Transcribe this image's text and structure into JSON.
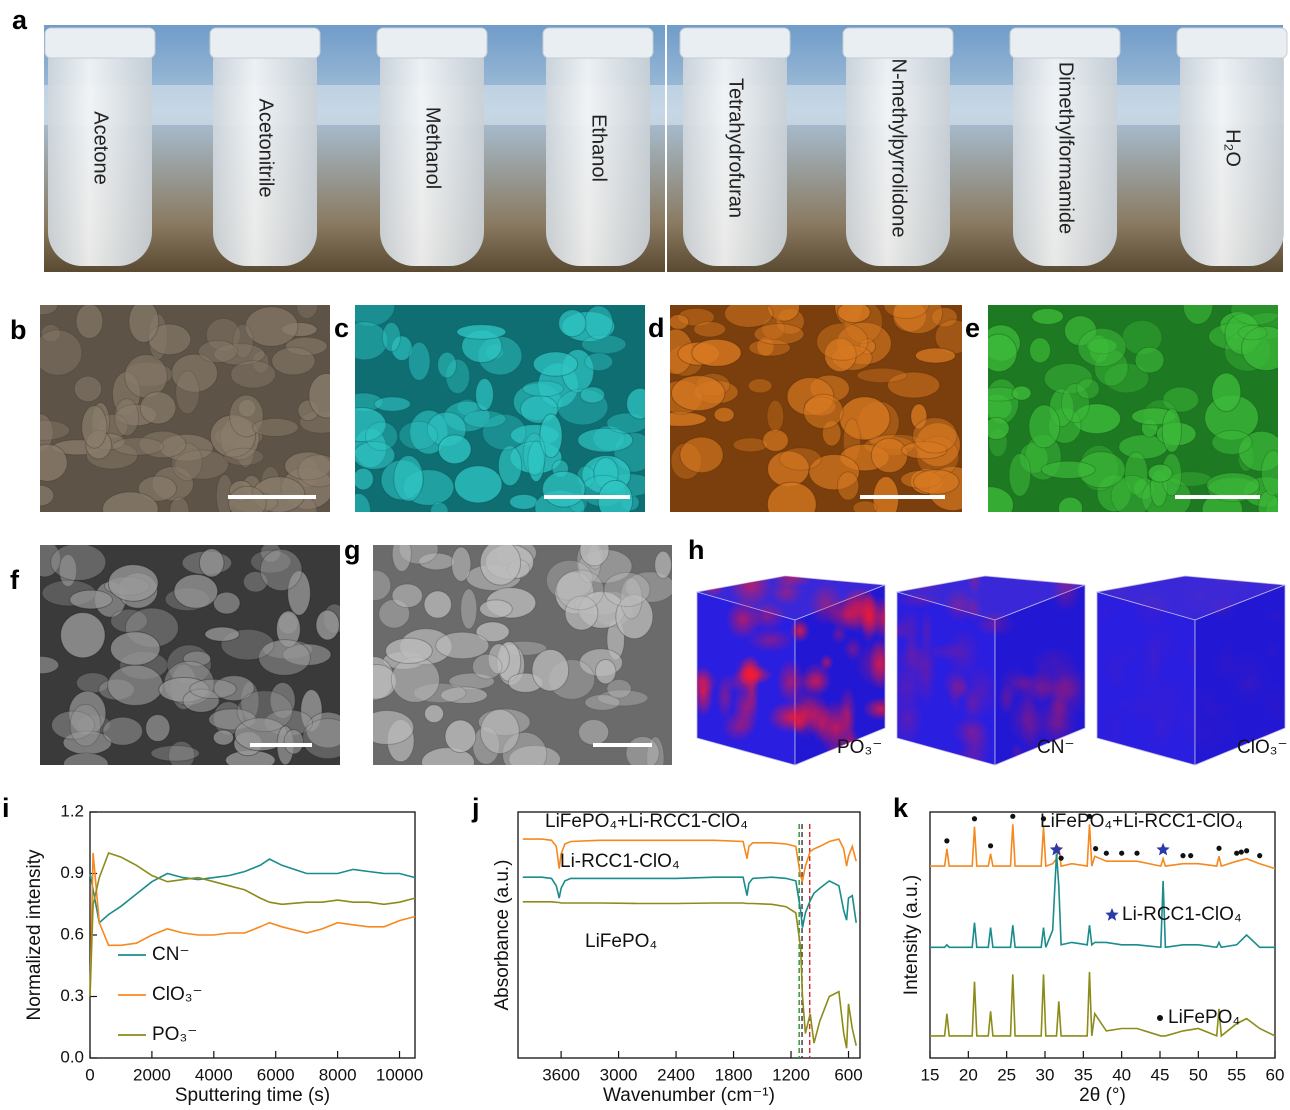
{
  "panel_labels": [
    "a",
    "b",
    "c",
    "d",
    "e",
    "f",
    "g",
    "h",
    "i",
    "j",
    "k"
  ],
  "solvents": [
    "Acetone",
    "Acetonitrile",
    "Methanol",
    "Ethanol",
    "Tetrahydrofuran",
    "N-methylpyrrolidone",
    "Dimethylformamide",
    "H₂O"
  ],
  "cube_labels": [
    "PO₃⁻",
    "CN⁻",
    "ClO₃⁻"
  ],
  "chart_data": [
    {
      "type": "line",
      "xlabel": "Sputtering time (s)",
      "ylabel": "Normalized intensity",
      "x": [
        0,
        100,
        300,
        600,
        1000,
        1500,
        2000,
        2500,
        3000,
        3500,
        4000,
        4500,
        5000,
        5500,
        5800,
        6200,
        7000,
        7500,
        8000,
        8500,
        9000,
        9500,
        10000,
        10500
      ],
      "xlim": [
        0,
        10500
      ],
      "xticks": [
        0,
        2000,
        4000,
        6000,
        8000,
        10000
      ],
      "ylim": [
        0,
        1.2
      ],
      "yticks": [
        {
          "value": 0,
          "label": "0.0"
        },
        0.3,
        0.6,
        0.9,
        1.2
      ],
      "legend": "lower left",
      "series": [
        {
          "name": "CN⁻",
          "color": "#1a8c8c",
          "values": [
            0.9,
            0.82,
            0.66,
            0.7,
            0.74,
            0.8,
            0.86,
            0.9,
            0.88,
            0.87,
            0.88,
            0.89,
            0.91,
            0.94,
            0.97,
            0.94,
            0.9,
            0.9,
            0.9,
            0.92,
            0.91,
            0.9,
            0.9,
            0.88
          ]
        },
        {
          "name": "ClO₃⁻",
          "color": "#f5891f",
          "values": [
            0.3,
            1.0,
            0.66,
            0.55,
            0.55,
            0.56,
            0.6,
            0.63,
            0.61,
            0.6,
            0.6,
            0.61,
            0.61,
            0.64,
            0.66,
            0.64,
            0.61,
            0.63,
            0.66,
            0.65,
            0.64,
            0.64,
            0.67,
            0.69
          ]
        },
        {
          "name": "PO₃⁻",
          "color": "#8c8c1a",
          "values": [
            0.3,
            0.75,
            0.88,
            1.0,
            0.98,
            0.94,
            0.89,
            0.86,
            0.87,
            0.88,
            0.86,
            0.84,
            0.82,
            0.78,
            0.76,
            0.75,
            0.76,
            0.76,
            0.77,
            0.76,
            0.76,
            0.75,
            0.76,
            0.78
          ]
        }
      ]
    },
    {
      "type": "line",
      "xlabel": "Wavenumber (cm⁻¹)",
      "ylabel": "Absorbance (a.u.)",
      "x": [
        4000,
        3800,
        3700,
        3650,
        3620,
        3600,
        3560,
        3500,
        3200,
        2800,
        2400,
        2000,
        1700,
        1660,
        1640,
        1600,
        1400,
        1250,
        1150,
        1100,
        1080,
        1050,
        1000,
        960,
        900,
        800,
        700,
        650,
        620,
        600,
        560,
        520
      ],
      "xlim": [
        4050,
        480
      ],
      "xticks": [
        3600,
        3000,
        2400,
        1800,
        1200,
        600
      ],
      "ylim": [
        0,
        10
      ],
      "reference_lines": [
        {
          "x": 1115,
          "color": "#2e8b2e"
        },
        {
          "x": 1085,
          "color": "#333333"
        },
        {
          "x": 1005,
          "color": "#d62728"
        }
      ],
      "series": [
        {
          "name": "LiFePO₄+Li-RCC1-ClO₄",
          "color": "#f5891f",
          "values": [
            8.9,
            8.9,
            8.85,
            8.6,
            7.7,
            8.3,
            8.7,
            8.8,
            8.85,
            8.85,
            8.85,
            8.85,
            8.8,
            8.1,
            8.6,
            8.75,
            8.75,
            8.7,
            8.6,
            7.4,
            7.2,
            7.8,
            8.4,
            8.5,
            8.6,
            8.8,
            8.9,
            8.5,
            7.8,
            8.2,
            8.6,
            8.0
          ]
        },
        {
          "name": "Li-RCC1-ClO₄",
          "color": "#1a8c8c",
          "values": [
            7.35,
            7.35,
            7.3,
            7.0,
            6.5,
            6.9,
            7.2,
            7.3,
            7.3,
            7.3,
            7.3,
            7.35,
            7.35,
            6.6,
            7.1,
            7.3,
            7.35,
            7.3,
            7.2,
            6.0,
            5.3,
            5.9,
            6.4,
            6.7,
            6.9,
            7.2,
            7.0,
            6.0,
            5.6,
            6.5,
            6.6,
            5.5
          ]
        },
        {
          "name": "LiFePO₄",
          "color": "#8c8c1a",
          "values": [
            6.35,
            6.35,
            6.35,
            6.33,
            6.32,
            6.3,
            6.3,
            6.3,
            6.3,
            6.28,
            6.28,
            6.3,
            6.3,
            6.28,
            6.28,
            6.28,
            6.25,
            6.15,
            5.9,
            4.5,
            2.5,
            1.0,
            1.8,
            0.6,
            1.5,
            2.5,
            2.7,
            1.0,
            0.4,
            2.2,
            1.2,
            0.5
          ]
        }
      ]
    },
    {
      "type": "line",
      "xlabel": "2θ (°)",
      "ylabel": "Intensity (a.u.)",
      "x": [
        15,
        16.9,
        17.2,
        17.5,
        20.5,
        20.8,
        21.1,
        22.6,
        22.9,
        23.2,
        25.5,
        25.8,
        26.1,
        29.5,
        29.8,
        30.1,
        31.0,
        31.5,
        31.8,
        32.1,
        33.5,
        35.5,
        35.8,
        36.1,
        36.5,
        38.0,
        40.0,
        42.0,
        45.1,
        45.4,
        45.7,
        48.0,
        50.0,
        52.4,
        52.7,
        53.0,
        55.0,
        56.3,
        58.0,
        60
      ],
      "xlim": [
        15,
        60
      ],
      "xticks": [
        15,
        20,
        25,
        30,
        35,
        40,
        45,
        50,
        55,
        60
      ],
      "ylim": [
        0,
        10
      ],
      "peak_markers": {
        "dot": [
          17.2,
          20.8,
          22.9,
          25.8,
          29.8,
          32.1,
          35.8,
          36.6,
          38,
          40,
          42,
          48,
          49,
          52.7,
          55,
          55.6,
          56.3,
          58
        ],
        "star": [
          31.5,
          45.4
        ]
      },
      "series": [
        {
          "name": "LiFePO₄+Li-RCC1-ClO₄",
          "color": "#f5891f",
          "values": [
            7.8,
            7.8,
            8.5,
            7.8,
            7.8,
            9.4,
            7.8,
            7.8,
            8.3,
            7.8,
            7.8,
            9.5,
            7.8,
            7.8,
            9.4,
            7.8,
            7.9,
            8.1,
            8.6,
            7.8,
            7.9,
            7.8,
            9.5,
            7.8,
            8.2,
            8.0,
            8.0,
            8.0,
            7.8,
            8.1,
            7.8,
            7.9,
            7.9,
            7.8,
            8.2,
            7.8,
            8.0,
            8.1,
            7.9,
            7.7
          ]
        },
        {
          "name": "Li-RCC1-ClO₄",
          "color": "#1a8c8c",
          "marker": "star",
          "values": [
            4.5,
            4.5,
            4.6,
            4.5,
            4.5,
            5.5,
            4.5,
            4.5,
            5.3,
            4.5,
            4.5,
            5.4,
            4.5,
            4.5,
            5.3,
            4.5,
            5.2,
            8.3,
            7.0,
            4.6,
            4.7,
            4.6,
            5.4,
            4.6,
            4.7,
            4.7,
            4.6,
            4.6,
            4.5,
            7.2,
            4.5,
            4.6,
            4.6,
            4.5,
            4.7,
            4.5,
            4.6,
            5.0,
            4.5,
            4.5
          ]
        },
        {
          "name": "LiFePO₄",
          "color": "#8c8c1a",
          "marker": "dot",
          "values": [
            0.9,
            0.9,
            1.8,
            0.9,
            0.9,
            3.1,
            0.9,
            0.9,
            1.9,
            0.9,
            0.9,
            3.4,
            0.9,
            0.9,
            3.4,
            0.9,
            0.9,
            0.9,
            2.3,
            0.9,
            0.9,
            0.9,
            3.5,
            0.9,
            1.8,
            1.1,
            1.2,
            1.2,
            0.9,
            0.9,
            0.9,
            1.1,
            1.2,
            0.9,
            2.0,
            0.9,
            1.4,
            1.6,
            1.2,
            0.9
          ]
        }
      ]
    }
  ]
}
